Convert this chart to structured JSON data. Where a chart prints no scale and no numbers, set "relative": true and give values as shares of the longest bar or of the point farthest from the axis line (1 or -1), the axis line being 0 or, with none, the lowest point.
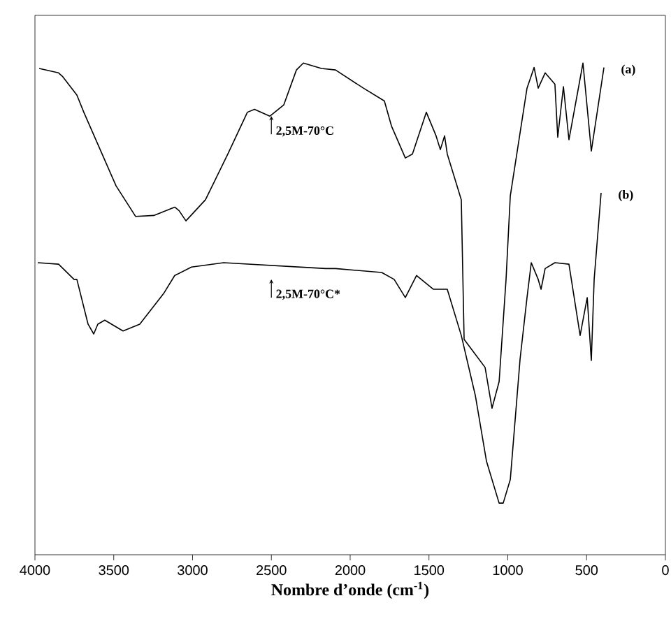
{
  "chart_data": {
    "type": "line",
    "relative": true,
    "xlabel": "Nombre d’onde (cm$^{-1}$)",
    "xlim": [
      4000,
      0
    ],
    "xticks": [
      4000,
      3500,
      3000,
      2500,
      2000,
      1500,
      1000,
      500,
      0
    ],
    "marker": "none",
    "line_style": "solid",
    "annotations": [
      {
        "text": "2,5M-70°C",
        "x": 2500,
        "y": 0.892
      },
      {
        "text": "2,5M-70°C*",
        "x": 2500,
        "y": 0.56
      }
    ],
    "series": [
      {
        "name": "(a)",
        "color": "#000000",
        "x": [
          3973,
          3850,
          3823,
          3734,
          3690,
          3574,
          3485,
          3361,
          3246,
          3113,
          3086,
          3042,
          2918,
          2776,
          2652,
          2607,
          2510,
          2421,
          2341,
          2297,
          2182,
          2093,
          1916,
          1783,
          1738,
          1650,
          1605,
          1517,
          1455,
          1428,
          1401,
          1384,
          1295,
          1277,
          1144,
          1100,
          1055,
          1011,
          984,
          878,
          833,
          807,
          763,
          701,
          683,
          647,
          612,
          523,
          470,
          390
        ],
        "values": [
          0.989,
          0.98,
          0.972,
          0.935,
          0.9,
          0.815,
          0.75,
          0.688,
          0.69,
          0.707,
          0.7,
          0.679,
          0.722,
          0.815,
          0.9,
          0.906,
          0.892,
          0.915,
          0.986,
          1,
          0.989,
          0.986,
          0.949,
          0.923,
          0.872,
          0.807,
          0.815,
          0.9,
          0.852,
          0.824,
          0.852,
          0.815,
          0.722,
          0.438,
          0.381,
          0.298,
          0.352,
          0.56,
          0.73,
          0.949,
          0.991,
          0.949,
          0.98,
          0.957,
          0.849,
          0.952,
          0.844,
          1,
          0.821,
          0.991
        ]
      },
      {
        "name": "(b)",
        "color": "#000000",
        "x": [
          3982,
          3850,
          3752,
          3734,
          3663,
          3627,
          3601,
          3557,
          3441,
          3335,
          3184,
          3113,
          3007,
          2803,
          2155,
          2093,
          1800,
          1721,
          1650,
          1579,
          1473,
          1384,
          1295,
          1206,
          1135,
          1055,
          1029,
          984,
          922,
          878,
          851,
          807,
          789,
          763,
          701,
          612,
          541,
          496,
          470,
          452,
          408
        ],
        "values": [
          0.594,
          0.591,
          0.56,
          0.56,
          0.469,
          0.449,
          0.469,
          0.477,
          0.455,
          0.469,
          0.531,
          0.568,
          0.585,
          0.594,
          0.582,
          0.582,
          0.574,
          0.56,
          0.523,
          0.568,
          0.54,
          0.54,
          0.446,
          0.324,
          0.19,
          0.105,
          0.105,
          0.153,
          0.398,
          0.523,
          0.594,
          0.56,
          0.54,
          0.582,
          0.594,
          0.591,
          0.446,
          0.523,
          0.395,
          0.56,
          0.736
        ]
      }
    ]
  }
}
